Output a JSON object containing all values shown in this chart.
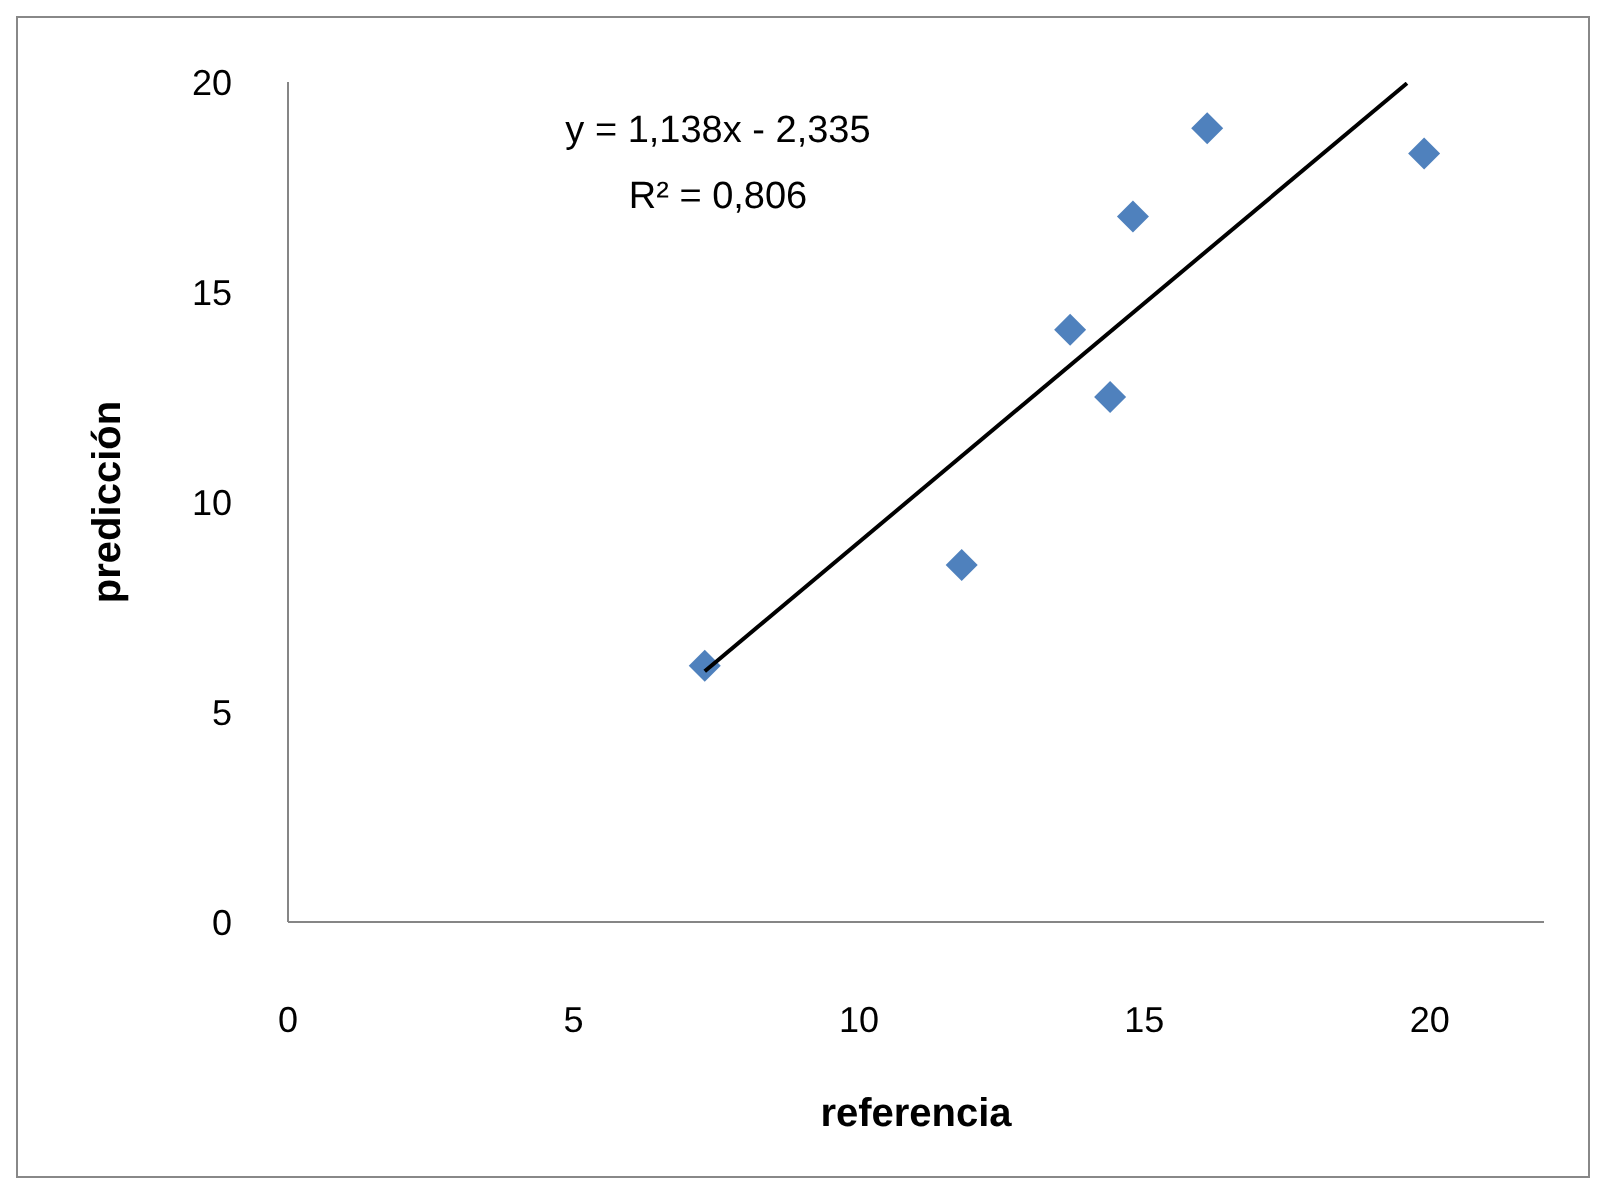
{
  "chart_data": {
    "type": "scatter",
    "xlabel": "referencia",
    "ylabel": "predicción",
    "legend": false,
    "grid": false,
    "xlim": [
      0,
      22
    ],
    "xticks": [
      0,
      5,
      10,
      15,
      20
    ],
    "ylim": [
      0,
      20
    ],
    "yticks": [
      0,
      5,
      10,
      15,
      20
    ],
    "annotations": [
      "y = 1,138x - 2,335",
      "R² = 0,806"
    ],
    "series": [
      {
        "color": "#4f81bd",
        "marker": "diamond",
        "x": [
          7.3,
          11.8,
          13.7,
          14.4,
          14.8,
          16.1,
          19.9
        ],
        "values": [
          6.1,
          8.5,
          14.1,
          12.5,
          16.8,
          18.9,
          18.3
        ]
      },
      {
        "type": "line",
        "marker": "none",
        "color": "#000000",
        "x": [
          7.3,
          19.6
        ],
        "values": [
          5.97,
          19.97
        ]
      }
    ]
  }
}
